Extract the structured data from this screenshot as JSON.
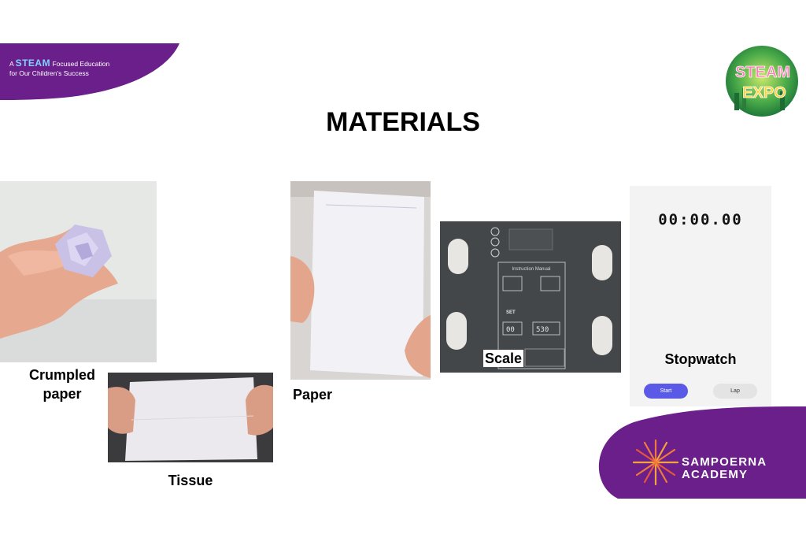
{
  "header": {
    "tagline_a": "A",
    "tagline_steam": "STEAM",
    "tagline_rest": "Focused Education",
    "tagline_line2": "for Our Children's Success",
    "expo_logo_text": "STEAM EXPO"
  },
  "title": "MATERIALS",
  "materials": {
    "crumpled_line1": "Crumpled",
    "crumpled_line2": "paper",
    "tissue": "Tissue",
    "paper": "Paper",
    "scale": "Scale"
  },
  "scale_device": {
    "manual_title": "Instruction Manual",
    "set_label": "SET",
    "reading_1": "00",
    "reading_2": "530"
  },
  "stopwatch": {
    "time": "00:00.00",
    "label": "Stopwatch",
    "start_label": "Start",
    "lap_label": "Lap"
  },
  "brand": {
    "line1": "SAMPOERNA",
    "line2": "ACADEMY"
  },
  "colors": {
    "brand_purple": "#6a1f8a",
    "stopwatch_start": "#5a5ae6"
  }
}
